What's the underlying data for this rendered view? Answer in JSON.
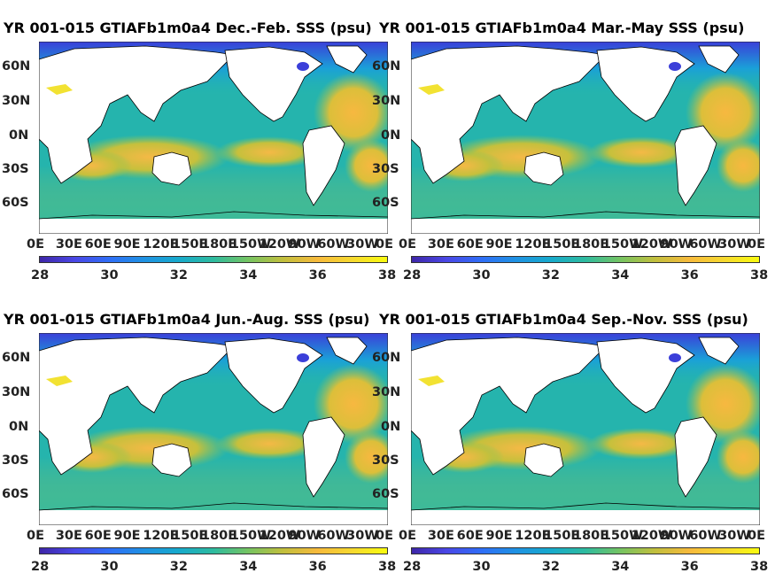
{
  "panels": [
    {
      "title": "YR 001-015 GTIAFb1m0a4 Dec.-Feb. SSS (psu)",
      "season": "DJF"
    },
    {
      "title": "YR 001-015 GTIAFb1m0a4 Mar.-May SSS (psu)",
      "season": "MAM"
    },
    {
      "title": "YR 001-015 GTIAFb1m0a4 Jun.-Aug. SSS (psu)",
      "season": "JJA"
    },
    {
      "title": "YR 001-015 GTIAFb1m0a4 Sep.-Nov. SSS (psu)",
      "season": "SON"
    }
  ],
  "lat_labels": [
    "60N",
    "30N",
    "0N",
    "30S",
    "60S"
  ],
  "lon_labels": [
    "0E",
    "30E",
    "60E",
    "90E",
    "120E",
    "150E",
    "180E",
    "150W",
    "120W",
    "90W",
    "60W",
    "30W",
    "0E"
  ],
  "colorbar": {
    "ticks": [
      "28",
      "30",
      "32",
      "34",
      "36",
      "38"
    ],
    "min": 28,
    "max": 38,
    "colormap": "parula",
    "unit": "psu"
  },
  "colors": {
    "low_salinity": "#3e26a8",
    "mid_salinity": "#2ebb9f",
    "high_salinity": "#f7ba3c",
    "land": "#ffffff",
    "coastline": "#000000"
  }
}
